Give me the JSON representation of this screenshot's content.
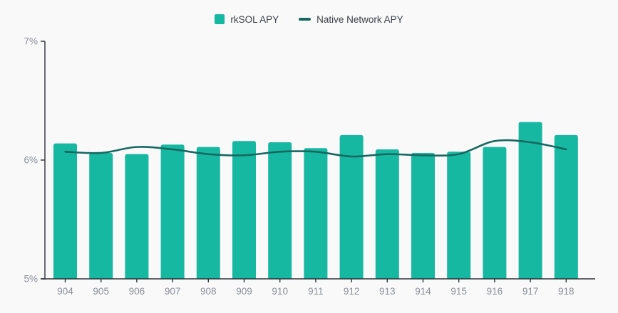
{
  "page": {
    "background": "#f9f9fa"
  },
  "legend": [
    {
      "label": "rkSOL APY",
      "swatch": "square-swatch-icon",
      "color": "#17b8a1"
    },
    {
      "label": "Native Network APY",
      "swatch": "line-swatch-icon",
      "color": "#166861"
    }
  ],
  "chart_data": {
    "type": "bar",
    "title": "",
    "xlabel": "",
    "ylabel": "",
    "categories": [
      "904",
      "905",
      "906",
      "907",
      "908",
      "909",
      "910",
      "911",
      "912",
      "913",
      "914",
      "915",
      "916",
      "917",
      "918"
    ],
    "series": [
      {
        "name": "rkSOL APY",
        "type": "bar",
        "color": "#17b8a1",
        "values": [
          6.14,
          6.06,
          6.05,
          6.13,
          6.11,
          6.16,
          6.15,
          6.1,
          6.21,
          6.09,
          6.06,
          6.07,
          6.11,
          6.32,
          6.21
        ]
      },
      {
        "name": "Native Network APY",
        "type": "line",
        "color": "#166861",
        "values": [
          6.07,
          6.06,
          6.11,
          6.09,
          6.05,
          6.04,
          6.07,
          6.07,
          6.03,
          6.05,
          6.04,
          6.05,
          6.16,
          6.15,
          6.09
        ]
      }
    ],
    "ylim": [
      5,
      7
    ],
    "yticks": [
      {
        "value": 5,
        "label": "5%"
      },
      {
        "value": 6,
        "label": "6%"
      },
      {
        "value": 7,
        "label": "7%"
      }
    ],
    "grid": false,
    "legend_position": "top-center",
    "axis_color": "#2f3237",
    "tick_label_color": "#8b8f98"
  }
}
